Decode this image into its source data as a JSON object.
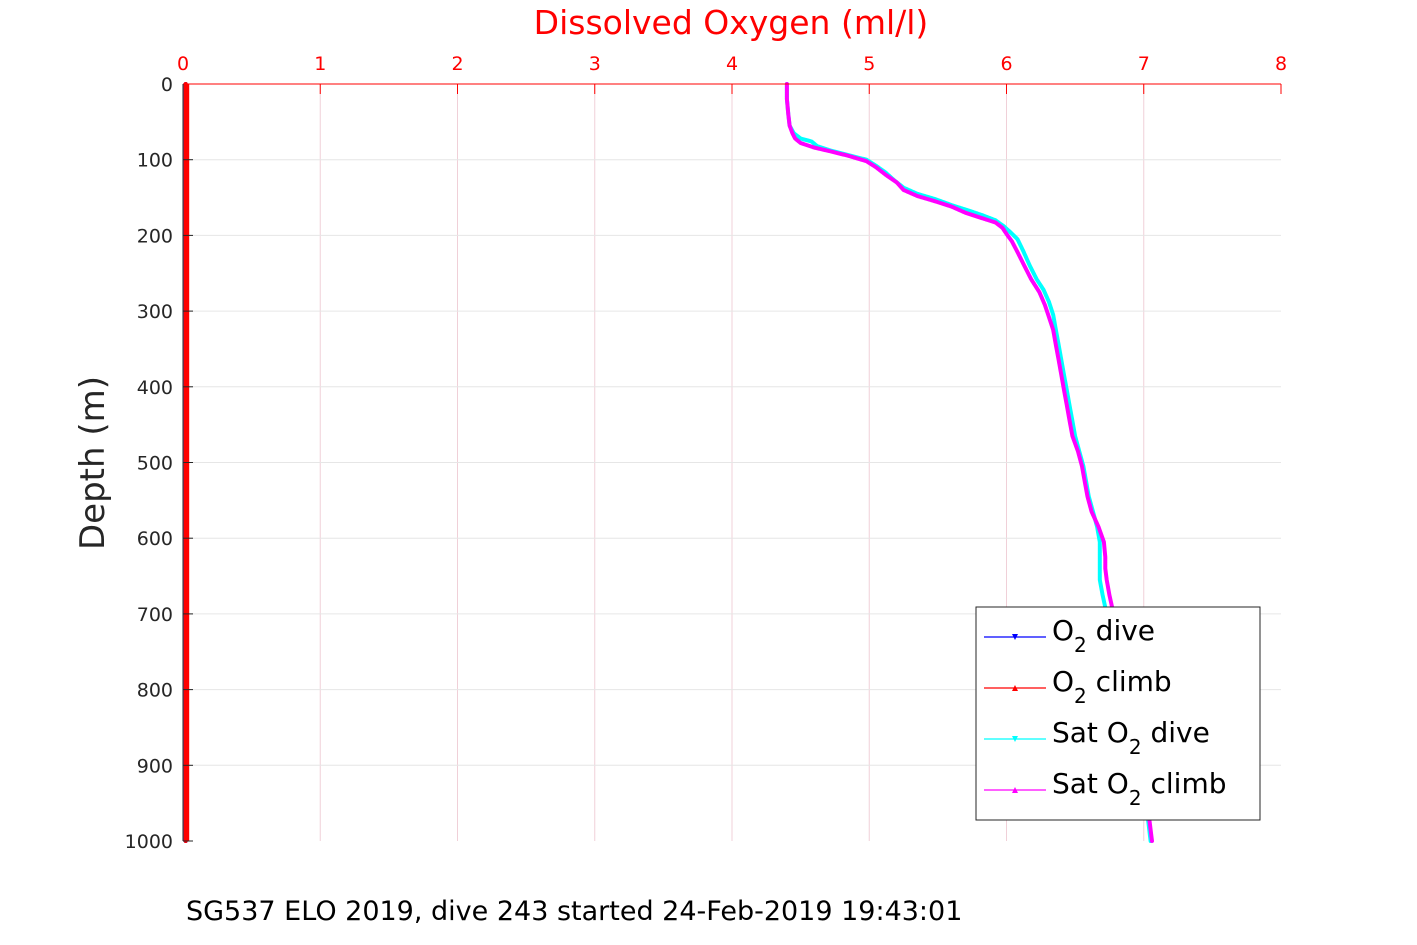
{
  "caption": "SG537 ELO 2019, dive 243 started 24-Feb-2019 19:43:01",
  "chart_data": {
    "type": "line",
    "title": "Dissolved Oxygen (ml/l)",
    "xlabel": "",
    "ylabel": "Depth (m)",
    "xlim": [
      0,
      8
    ],
    "ylim": [
      0,
      1000
    ],
    "y_reversed": true,
    "x_axis_position": "top",
    "xticks": [
      "0",
      "1",
      "2",
      "3",
      "4",
      "5",
      "6",
      "7",
      "8"
    ],
    "yticks": [
      "0",
      "100",
      "200",
      "300",
      "400",
      "500",
      "600",
      "700",
      "800",
      "900",
      "1000"
    ],
    "grid": true,
    "legend_position": "bottom-right",
    "colors": {
      "title": "#ff0000",
      "x_axis": "#ff0000",
      "grid": "#f0d0d8"
    },
    "series": [
      {
        "name": "O2 dive",
        "legend": {
          "pre": "O",
          "sub": "2",
          "post": " dive"
        },
        "color": "#0000ff",
        "marker": "down-triangle",
        "points": [
          [
            0.02,
            0
          ],
          [
            0.02,
            1000
          ]
        ]
      },
      {
        "name": "O2 climb",
        "legend": {
          "pre": "O",
          "sub": "2",
          "post": " climb"
        },
        "color": "#ff0000",
        "marker": "up-triangle",
        "points": [
          [
            0.02,
            0
          ],
          [
            0.02,
            1000
          ]
        ]
      },
      {
        "name": "Sat O2 dive",
        "legend": {
          "pre": "Sat O",
          "sub": "2",
          "post": " dive"
        },
        "color": "#00ffff",
        "marker": "down-triangle",
        "points": [
          [
            4.4,
            0
          ],
          [
            4.4,
            20
          ],
          [
            4.41,
            40
          ],
          [
            4.42,
            55
          ],
          [
            4.45,
            65
          ],
          [
            4.5,
            72
          ],
          [
            4.58,
            76
          ],
          [
            4.62,
            82
          ],
          [
            4.72,
            88
          ],
          [
            4.85,
            94
          ],
          [
            4.98,
            100
          ],
          [
            5.05,
            108
          ],
          [
            5.12,
            117
          ],
          [
            5.18,
            127
          ],
          [
            5.25,
            137
          ],
          [
            5.35,
            145
          ],
          [
            5.48,
            152
          ],
          [
            5.6,
            160
          ],
          [
            5.72,
            167
          ],
          [
            5.82,
            173
          ],
          [
            5.92,
            180
          ],
          [
            5.98,
            188
          ],
          [
            6.03,
            196
          ],
          [
            6.08,
            205
          ],
          [
            6.12,
            220
          ],
          [
            6.17,
            240
          ],
          [
            6.22,
            258
          ],
          [
            6.27,
            272
          ],
          [
            6.31,
            288
          ],
          [
            6.34,
            305
          ],
          [
            6.36,
            325
          ],
          [
            6.38,
            345
          ],
          [
            6.4,
            365
          ],
          [
            6.42,
            385
          ],
          [
            6.44,
            405
          ],
          [
            6.46,
            425
          ],
          [
            6.48,
            445
          ],
          [
            6.5,
            465
          ],
          [
            6.53,
            485
          ],
          [
            6.56,
            505
          ],
          [
            6.58,
            525
          ],
          [
            6.6,
            545
          ],
          [
            6.63,
            565
          ],
          [
            6.66,
            585
          ],
          [
            6.68,
            605
          ],
          [
            6.68,
            625
          ],
          [
            6.68,
            640
          ],
          [
            6.68,
            655
          ],
          [
            6.7,
            675
          ],
          [
            6.73,
            700
          ],
          [
            6.78,
            740
          ],
          [
            6.82,
            780
          ],
          [
            6.86,
            820
          ],
          [
            6.9,
            860
          ],
          [
            6.95,
            900
          ],
          [
            7.0,
            940
          ],
          [
            7.03,
            970
          ],
          [
            7.05,
            1000
          ]
        ]
      },
      {
        "name": "Sat O2 climb",
        "legend": {
          "pre": "Sat O",
          "sub": "2",
          "post": " climb"
        },
        "color": "#ff00ff",
        "marker": "up-triangle",
        "points": [
          [
            4.4,
            0
          ],
          [
            4.4,
            20
          ],
          [
            4.41,
            40
          ],
          [
            4.42,
            55
          ],
          [
            4.44,
            65
          ],
          [
            4.46,
            72
          ],
          [
            4.5,
            78
          ],
          [
            4.6,
            84
          ],
          [
            4.72,
            89
          ],
          [
            4.85,
            95
          ],
          [
            4.98,
            102
          ],
          [
            5.05,
            110
          ],
          [
            5.12,
            120
          ],
          [
            5.2,
            130
          ],
          [
            5.25,
            140
          ],
          [
            5.35,
            148
          ],
          [
            5.48,
            155
          ],
          [
            5.6,
            162
          ],
          [
            5.7,
            170
          ],
          [
            5.8,
            176
          ],
          [
            5.92,
            183
          ],
          [
            5.97,
            190
          ],
          [
            6.0,
            198
          ],
          [
            6.04,
            208
          ],
          [
            6.08,
            222
          ],
          [
            6.13,
            240
          ],
          [
            6.18,
            258
          ],
          [
            6.24,
            275
          ],
          [
            6.28,
            292
          ],
          [
            6.31,
            308
          ],
          [
            6.34,
            325
          ],
          [
            6.36,
            345
          ],
          [
            6.38,
            365
          ],
          [
            6.4,
            385
          ],
          [
            6.42,
            405
          ],
          [
            6.44,
            425
          ],
          [
            6.46,
            445
          ],
          [
            6.48,
            465
          ],
          [
            6.52,
            485
          ],
          [
            6.55,
            505
          ],
          [
            6.57,
            525
          ],
          [
            6.59,
            545
          ],
          [
            6.62,
            565
          ],
          [
            6.67,
            585
          ],
          [
            6.71,
            605
          ],
          [
            6.72,
            625
          ],
          [
            6.72,
            640
          ],
          [
            6.73,
            655
          ],
          [
            6.75,
            675
          ],
          [
            6.78,
            700
          ],
          [
            6.81,
            740
          ],
          [
            6.85,
            780
          ],
          [
            6.89,
            820
          ],
          [
            6.93,
            860
          ],
          [
            6.97,
            900
          ],
          [
            7.01,
            940
          ],
          [
            7.04,
            970
          ],
          [
            7.06,
            1000
          ]
        ]
      }
    ]
  }
}
